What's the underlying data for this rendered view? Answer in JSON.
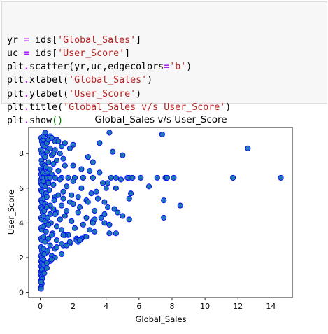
{
  "code_cell": {
    "lines": [
      [
        {
          "t": "yr ",
          "c": ""
        },
        {
          "t": "=",
          "c": "op"
        },
        {
          "t": " ids[",
          "c": ""
        },
        {
          "t": "'Global_Sales'",
          "c": "str"
        },
        {
          "t": "]",
          "c": ""
        }
      ],
      [
        {
          "t": "uc ",
          "c": ""
        },
        {
          "t": "=",
          "c": "op"
        },
        {
          "t": " ids[",
          "c": ""
        },
        {
          "t": "'User_Score'",
          "c": "str"
        },
        {
          "t": "]",
          "c": ""
        }
      ],
      [
        {
          "t": "plt",
          "c": ""
        },
        {
          "t": ".",
          "c": "op"
        },
        {
          "t": "scatter(yr,uc,edgecolors",
          "c": ""
        },
        {
          "t": "=",
          "c": "op"
        },
        {
          "t": "'b'",
          "c": "str"
        },
        {
          "t": ")",
          "c": ""
        }
      ],
      [
        {
          "t": "plt",
          "c": ""
        },
        {
          "t": ".",
          "c": "op"
        },
        {
          "t": "xlabel(",
          "c": ""
        },
        {
          "t": "'Global_Sales'",
          "c": "str"
        },
        {
          "t": ")",
          "c": ""
        }
      ],
      [
        {
          "t": "plt",
          "c": ""
        },
        {
          "t": ".",
          "c": "op"
        },
        {
          "t": "ylabel(",
          "c": ""
        },
        {
          "t": "'User_Score'",
          "c": "str"
        },
        {
          "t": ")",
          "c": ""
        }
      ],
      [
        {
          "t": "plt",
          "c": ""
        },
        {
          "t": ".",
          "c": "op"
        },
        {
          "t": "title(",
          "c": ""
        },
        {
          "t": "'Global_Sales v/s User_Score'",
          "c": "str"
        },
        {
          "t": ")",
          "c": ""
        }
      ],
      [
        {
          "t": "plt",
          "c": ""
        },
        {
          "t": ".",
          "c": "op"
        },
        {
          "t": "show",
          "c": ""
        },
        {
          "t": "()",
          "c": "kw"
        }
      ]
    ]
  },
  "chart_data": {
    "type": "scatter",
    "title": "Global_Sales v/s User_Score",
    "xlabel": "Global_Sales",
    "ylabel": "User_Score",
    "xlim": [
      -0.7,
      15.3
    ],
    "ylim": [
      -0.3,
      9.5
    ],
    "xticks": [
      "0",
      "2",
      "4",
      "6",
      "8",
      "10",
      "12",
      "14"
    ],
    "yticks": [
      "0",
      "2",
      "4",
      "6",
      "8"
    ],
    "marker_fill": "#1f77b4",
    "marker_edge": "#0000ff",
    "grid": false,
    "x": [
      0.05,
      0.1,
      0.15,
      0.2,
      0.3,
      0.05,
      0.1,
      0.2,
      0.4,
      0.6,
      0.08,
      0.12,
      0.3,
      0.5,
      0.7,
      0.9,
      0.05,
      0.1,
      0.25,
      0.35,
      0.45,
      0.6,
      0.8,
      1.0,
      1.2,
      0.05,
      0.15,
      0.3,
      0.5,
      0.7,
      1.1,
      1.5,
      0.05,
      0.1,
      0.2,
      0.4,
      0.6,
      0.9,
      1.3,
      1.7,
      2.1,
      0.05,
      0.1,
      0.2,
      0.3,
      0.5,
      0.8,
      1.2,
      1.6,
      2.0,
      2.6,
      3.2,
      0.05,
      0.1,
      0.2,
      0.35,
      0.55,
      0.9,
      1.4,
      1.9,
      2.5,
      3.1,
      3.8,
      4.3,
      0.05,
      0.1,
      0.2,
      0.3,
      0.4,
      0.6,
      0.85,
      1.1,
      1.4,
      1.8,
      2.3,
      2.8,
      3.4,
      4.0,
      4.6,
      5.3,
      0.05,
      0.1,
      0.15,
      0.25,
      0.4,
      0.6,
      0.8,
      1.0,
      1.3,
      1.6,
      2.0,
      2.4,
      2.9,
      3.5,
      4.1,
      0.05,
      0.1,
      0.2,
      0.3,
      0.45,
      0.65,
      0.9,
      1.2,
      1.5,
      1.9,
      2.3,
      2.8,
      3.3,
      3.9,
      4.5,
      5.0,
      5.4,
      0.05,
      0.1,
      0.2,
      0.35,
      0.5,
      0.75,
      1.0,
      1.3,
      1.7,
      2.1,
      2.6,
      3.2,
      3.7,
      4.2,
      4.7,
      0.05,
      0.1,
      0.2,
      0.3,
      0.5,
      0.7,
      1.0,
      1.4,
      1.8,
      2.2,
      2.7,
      3.3,
      3.9,
      0.05,
      0.1,
      0.2,
      0.4,
      0.6,
      0.9,
      1.3,
      1.8,
      2.4,
      3.0,
      0.05,
      0.1,
      0.25,
      0.45,
      0.7,
      1.0,
      1.5,
      2.2,
      2.8,
      3.3,
      0.05,
      0.1,
      0.2,
      0.35,
      0.6,
      0.9,
      1.3,
      0.05,
      0.1,
      0.2,
      0.4,
      0.7,
      0.05,
      0.1,
      0.2,
      0.4,
      0.05,
      0.1,
      0.25,
      0.05,
      0.12,
      0.05,
      0.1,
      0.05,
      0.05,
      0.05,
      0.3,
      0.6,
      1.0,
      1.5,
      2.0,
      0.2,
      0.5,
      0.9,
      1.3,
      1.8,
      0.3,
      0.7,
      1.1,
      0.4,
      0.8,
      1.4,
      2.0,
      2.5,
      3.0,
      3.6,
      4.2,
      4.4,
      5.0,
      5.4,
      6.1,
      6.6,
      7.1,
      7.4,
      7.6,
      8.1,
      7.7,
      7.5,
      7.5,
      8.5,
      5.6,
      5.5,
      5.4,
      4.9,
      4.6,
      4.1,
      3.9,
      3.6,
      3.2,
      2.9,
      2.6,
      11.7,
      12.6,
      14.6,
      2.5,
      2.3,
      1.6,
      1.4,
      3.2,
      2.4,
      4.6,
      4.2
    ],
    "y": [
      8.9,
      8.7,
      8.5,
      8.8,
      8.4,
      8.2,
      8.0,
      7.9,
      8.6,
      8.3,
      7.6,
      7.4,
      7.8,
      7.5,
      7.9,
      8.2,
      7.1,
      7.0,
      7.3,
      7.2,
      6.9,
      7.1,
      7.4,
      7.6,
      8.0,
      6.8,
      6.9,
      6.7,
      6.6,
      6.8,
      7.0,
      7.3,
      6.5,
      6.6,
      6.6,
      6.6,
      6.6,
      6.6,
      6.6,
      6.6,
      6.6,
      6.3,
      6.2,
      6.4,
      6.1,
      6.3,
      6.2,
      6.5,
      6.1,
      6.4,
      6.6,
      6.6,
      5.9,
      5.8,
      5.6,
      5.7,
      5.9,
      5.5,
      5.8,
      5.6,
      6.0,
      5.7,
      6.3,
      6.6,
      5.3,
      5.2,
      5.4,
      5.1,
      5.5,
      5.0,
      5.3,
      5.6,
      5.4,
      5.2,
      5.5,
      5.3,
      5.8,
      6.0,
      6.6,
      6.6,
      4.9,
      4.8,
      4.6,
      4.7,
      4.9,
      4.5,
      4.8,
      4.6,
      5.0,
      4.7,
      5.1,
      4.9,
      5.2,
      5.4,
      4.9,
      4.3,
      4.2,
      4.4,
      4.1,
      4.3,
      4.0,
      4.5,
      4.2,
      4.4,
      4.1,
      4.6,
      4.3,
      4.7,
      4.5,
      4.8,
      4.4,
      4.2,
      3.7,
      3.6,
      3.8,
      3.5,
      3.9,
      3.4,
      3.8,
      3.6,
      3.3,
      3.7,
      3.9,
      4.1,
      4.3,
      3.4,
      4.6,
      3.1,
      3.0,
      3.2,
      2.9,
      3.1,
      3.3,
      3.0,
      2.7,
      2.8,
      3.1,
      3.2,
      3.5,
      4.0,
      2.6,
      2.4,
      2.5,
      2.3,
      2.7,
      2.5,
      2.8,
      2.9,
      3.0,
      3.6,
      2.1,
      2.0,
      2.2,
      2.4,
      2.1,
      2.6,
      3.3,
      3.0,
      3.2,
      4.2,
      1.8,
      1.7,
      1.9,
      1.6,
      1.8,
      2.0,
      2.2,
      1.5,
      1.4,
      1.6,
      1.7,
      1.9,
      1.2,
      1.3,
      1.1,
      1.4,
      1.0,
      0.9,
      1.1,
      0.7,
      0.8,
      0.6,
      0.5,
      0.3,
      0.2,
      0.6,
      9.1,
      9.0,
      8.8,
      8.6,
      8.5,
      9.0,
      8.8,
      8.7,
      8.4,
      8.3,
      9.2,
      8.9,
      8.7,
      8.1,
      8.0,
      7.7,
      7.3,
      7.1,
      7.0,
      8.6,
      9.2,
      8.1,
      7.9,
      6.6,
      6.6,
      6.1,
      6.6,
      9.1,
      6.6,
      6.6,
      6.6,
      4.3,
      5.3,
      5.0,
      6.6,
      5.7,
      5.4,
      6.5,
      6.0,
      6.3,
      5.2,
      6.9,
      7.5,
      7.8,
      6.6,
      6.6,
      8.3,
      6.6,
      3.1,
      2.9,
      2.7,
      3.3,
      4.0,
      3.0,
      3.4,
      3.9
    ]
  }
}
